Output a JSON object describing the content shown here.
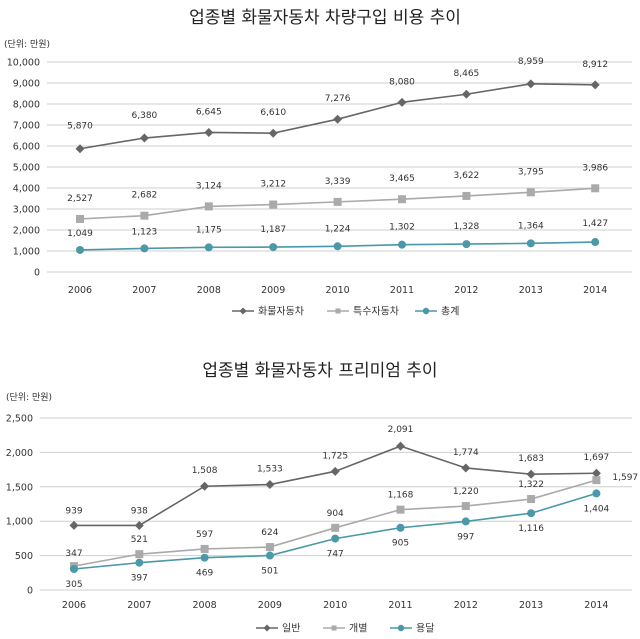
{
  "chart_data": [
    {
      "type": "line",
      "title": "업종별 화물자동차 차량구입 비용 추이",
      "unit_label": "(단위: 만원)",
      "categories": [
        "2006",
        "2007",
        "2008",
        "2009",
        "2010",
        "2011",
        "2012",
        "2013",
        "2014"
      ],
      "ylim": [
        0,
        10000
      ],
      "yticks": [
        0,
        1000,
        2000,
        3000,
        4000,
        5000,
        6000,
        7000,
        8000,
        9000,
        10000
      ],
      "ytick_labels": [
        "0",
        "1,000",
        "2,000",
        "3,000",
        "4,000",
        "5,000",
        "6,000",
        "7,000",
        "8,000",
        "9,000",
        "10,000"
      ],
      "grid": true,
      "legend_position": "bottom",
      "series": [
        {
          "name": "화물자동차",
          "marker": "diamond",
          "color": "#666666",
          "values": [
            5870,
            6380,
            6645,
            6610,
            7276,
            8080,
            8465,
            8959,
            8912
          ],
          "labels": [
            "5,870",
            "6,380",
            "6,645",
            "6,610",
            "7,276",
            "8,080",
            "8,465",
            "8,959",
            "8,912"
          ]
        },
        {
          "name": "특수자동차",
          "marker": "square",
          "color": "#aaaaaa",
          "values": [
            2527,
            2682,
            3124,
            3212,
            3339,
            3465,
            3622,
            3795,
            3986
          ],
          "labels": [
            "2,527",
            "2,682",
            "3,124",
            "3,212",
            "3,339",
            "3,465",
            "3,622",
            "3,795",
            "3,986"
          ]
        },
        {
          "name": "총계",
          "marker": "circle",
          "color": "#4a98a8",
          "values": [
            1049,
            1123,
            1175,
            1187,
            1224,
            1302,
            1328,
            1364,
            1427
          ],
          "labels": [
            "1,049",
            "1,123",
            "1,175",
            "1,187",
            "1,224",
            "1,302",
            "1,328",
            "1,364",
            "1,427"
          ]
        }
      ]
    },
    {
      "type": "line",
      "title": "업종별 화물자동차 프리미엄 추이",
      "unit_label": "(단위: 만원)",
      "categories": [
        "2006",
        "2007",
        "2008",
        "2009",
        "2010",
        "2011",
        "2012",
        "2013",
        "2014"
      ],
      "ylim": [
        0,
        2500
      ],
      "yticks": [
        0,
        500,
        1000,
        1500,
        2000,
        2500
      ],
      "ytick_labels": [
        "0",
        "500",
        "1,000",
        "1,500",
        "2,000",
        "2,500"
      ],
      "grid": true,
      "legend_position": "bottom",
      "series": [
        {
          "name": "일반",
          "marker": "diamond",
          "color": "#666666",
          "values": [
            939,
            938,
            1508,
            1533,
            1725,
            2091,
            1774,
            1683,
            1697
          ],
          "labels": [
            "939",
            "938",
            "1,508",
            "1,533",
            "1,725",
            "2,091",
            "1,774",
            "1,683",
            "1,697"
          ]
        },
        {
          "name": "개별",
          "marker": "square",
          "color": "#aaaaaa",
          "values": [
            347,
            521,
            597,
            624,
            904,
            1168,
            1220,
            1322,
            1597
          ],
          "labels": [
            "347",
            "521",
            "597",
            "624",
            "904",
            "1,168",
            "1,220",
            "1,322",
            "1,597"
          ]
        },
        {
          "name": "용달",
          "marker": "circle",
          "color": "#4a98a8",
          "values": [
            305,
            397,
            469,
            501,
            747,
            905,
            997,
            1116,
            1404
          ],
          "labels": [
            "305",
            "397",
            "469",
            "501",
            "747",
            "905",
            "997",
            "1,116",
            "1,404"
          ]
        }
      ]
    }
  ]
}
